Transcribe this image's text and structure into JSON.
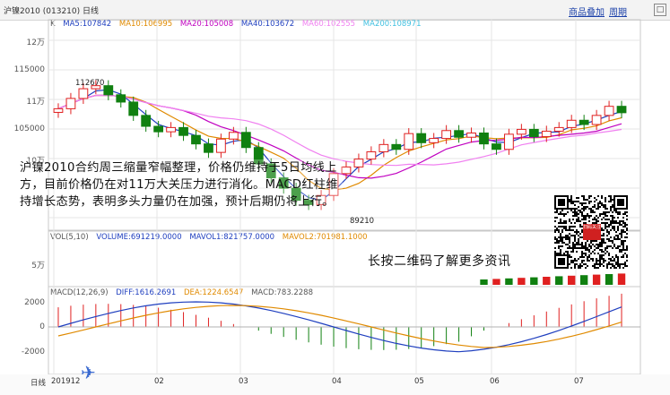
{
  "window": {
    "title": "沪镍2010 (013210) 日线",
    "links": [
      "商品叠加",
      "周期"
    ],
    "close_glyph": "□"
  },
  "price_panel": {
    "legend_prefix": "K",
    "ma": [
      {
        "label": "MA5:107842",
        "color": "#1f3fbf"
      },
      {
        "label": "MA10:106995",
        "color": "#e08a00"
      },
      {
        "label": "MA20:105008",
        "color": "#c000c0"
      },
      {
        "label": "MA40:103672",
        "color": "#1f3fbf"
      },
      {
        "label": "MA60:102555",
        "color": "#f080f0"
      },
      {
        "label": "MA200:108971",
        "color": "#40c0e0"
      }
    ],
    "y_ticks": [
      "12万",
      "115000",
      "11万",
      "105000",
      "10万"
    ],
    "annot_high": "112670",
    "annot_low": "89210"
  },
  "volume_panel": {
    "legend": [
      {
        "label": "VOL(5,10)",
        "color": "#555555"
      },
      {
        "label": "VOLUME:691219.0000",
        "color": "#1f3fbf"
      },
      {
        "label": "MAVOL1:821757.0000",
        "color": "#1f3fbf"
      },
      {
        "label": "MAVOL2:701981.1000",
        "color": "#e08a00"
      }
    ],
    "y_ticks": [
      "5万"
    ]
  },
  "macd_panel": {
    "legend": [
      {
        "label": "MACD(12,26,9)",
        "color": "#555555"
      },
      {
        "label": "DIFF:1616.2691",
        "color": "#1f3fbf"
      },
      {
        "label": "DEA:1224.6547",
        "color": "#e08a00"
      },
      {
        "label": "MACD:783.2288",
        "color": "#555555"
      }
    ],
    "y_ticks": [
      "2000",
      "0",
      "-2000"
    ]
  },
  "x_axis": {
    "unit_label": "日线",
    "months": [
      "201912",
      "02",
      "03",
      "04",
      "05",
      "06",
      "07"
    ]
  },
  "overlay": {
    "commentary": "沪镍2010合约周三缩量窄幅整理，价格仍维持于5日均线上方，目前价格仍在对11万大关压力进行消化。MACD红柱维持增长态势，表明多头力量仍在加强，预计后期仍将上行。",
    "qr_caption": "长按二维码了解更多资讯",
    "qr_center_text": "扫码关注"
  },
  "colors": {
    "up": "#e02020",
    "down": "#108010",
    "grid": "#e6e6e6"
  },
  "chart_data": {
    "type": "candlestick",
    "title": "沪镍2010 日线",
    "x": [
      "201912",
      "02",
      "03",
      "04",
      "05",
      "06",
      "07"
    ],
    "ylim": [
      89210,
      122000
    ],
    "price_range_labels": {
      "high": 112670,
      "low": 89210
    },
    "close_series": [
      108500,
      110200,
      111800,
      112300,
      110800,
      109600,
      107400,
      105600,
      104700,
      105400,
      104100,
      102700,
      101300,
      103500,
      104600,
      102100,
      99400,
      97100,
      95400,
      93400,
      92700,
      94200,
      97800,
      98900,
      100200,
      101400,
      102600,
      101800,
      104400,
      102900,
      103600,
      104900,
      103800,
      104500,
      102700,
      101800,
      104300,
      105100,
      103900,
      104800,
      105400,
      106600,
      105900,
      107400,
      108900,
      107842
    ],
    "macd_diff_end": 1616.2691,
    "macd_dea_end": 1224.6547,
    "macd_end": 783.2288,
    "volume_end": 691219,
    "mavol1_end": 821757,
    "mavol2_end": 701981.1
  }
}
